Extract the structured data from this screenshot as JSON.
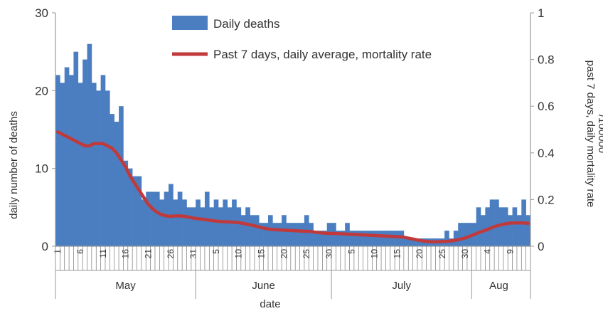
{
  "chart_data": {
    "type": "bar",
    "xlabel": "date",
    "ylabel_left": "daily number of deaths",
    "ylabel_right": [
      "past 7 days, daily mortality rate",
      "/100000"
    ],
    "ylim_left": [
      0,
      30
    ],
    "ylim_right": [
      0,
      1
    ],
    "yticks_left": [
      "0",
      "10",
      "20",
      "30"
    ],
    "yticks_right": [
      "0",
      "0.2",
      "0.4",
      "0.6",
      "0.8",
      "1"
    ],
    "grid": false,
    "legend_position": "top-center",
    "legend": {
      "bars": "Daily deaths",
      "line": "Past 7 days, daily average, mortality rate"
    },
    "day_labels": [
      {
        "text": "1",
        "idx": 0
      },
      {
        "text": "6",
        "idx": 5
      },
      {
        "text": "11",
        "idx": 10
      },
      {
        "text": "16",
        "idx": 15
      },
      {
        "text": "21",
        "idx": 20
      },
      {
        "text": "26",
        "idx": 25
      },
      {
        "text": "31",
        "idx": 30
      },
      {
        "text": "5",
        "idx": 35
      },
      {
        "text": "10",
        "idx": 40
      },
      {
        "text": "15",
        "idx": 45
      },
      {
        "text": "20",
        "idx": 50
      },
      {
        "text": "25",
        "idx": 55
      },
      {
        "text": "30",
        "idx": 60
      },
      {
        "text": "5",
        "idx": 65
      },
      {
        "text": "10",
        "idx": 70
      },
      {
        "text": "15",
        "idx": 75
      },
      {
        "text": "20",
        "idx": 80
      },
      {
        "text": "25",
        "idx": 85
      },
      {
        "text": "30",
        "idx": 90
      },
      {
        "text": "4",
        "idx": 95
      },
      {
        "text": "9",
        "idx": 100
      }
    ],
    "months": [
      {
        "label": "May",
        "start_idx": 0,
        "end_idx": 31
      },
      {
        "label": "June",
        "start_idx": 31,
        "end_idx": 61
      },
      {
        "label": "July",
        "start_idx": 61,
        "end_idx": 92
      },
      {
        "label": "Aug",
        "start_idx": 92,
        "end_idx": 104
      }
    ],
    "series": [
      {
        "name": "Daily deaths",
        "type": "bar",
        "axis": "left",
        "color": "#4a7ec0",
        "start_date": "May 1",
        "values": [
          22,
          21,
          23,
          22,
          25,
          21,
          24,
          26,
          21,
          20,
          22,
          20,
          17,
          16,
          18,
          11,
          10,
          9,
          9,
          6,
          7,
          7,
          7,
          6,
          7,
          8,
          6,
          7,
          6,
          5,
          5,
          6,
          5,
          7,
          5,
          6,
          5,
          6,
          5,
          6,
          5,
          4,
          5,
          4,
          4,
          3,
          3,
          4,
          3,
          3,
          4,
          3,
          3,
          3,
          3,
          4,
          3,
          2,
          2,
          2,
          3,
          3,
          2,
          2,
          3,
          2,
          2,
          2,
          2,
          2,
          2,
          2,
          2,
          2,
          2,
          2,
          2,
          1,
          1,
          1,
          1,
          1,
          1,
          1,
          1,
          1,
          2,
          1,
          2,
          3,
          3,
          3,
          3,
          5,
          4,
          5,
          6,
          6,
          5,
          5,
          4,
          5,
          4,
          6,
          4
        ]
      },
      {
        "name": "Past 7 days, daily average, mortality rate",
        "type": "line",
        "axis": "right",
        "color": "#c0393b",
        "values": [
          0.49,
          0.48,
          0.47,
          0.46,
          0.45,
          0.44,
          0.43,
          0.43,
          0.44,
          0.44,
          0.44,
          0.43,
          0.42,
          0.4,
          0.37,
          0.34,
          0.3,
          0.27,
          0.24,
          0.21,
          0.18,
          0.16,
          0.145,
          0.135,
          0.13,
          0.128,
          0.13,
          0.13,
          0.128,
          0.125,
          0.12,
          0.118,
          0.116,
          0.113,
          0.11,
          0.108,
          0.106,
          0.105,
          0.104,
          0.103,
          0.101,
          0.098,
          0.094,
          0.09,
          0.085,
          0.08,
          0.076,
          0.073,
          0.071,
          0.07,
          0.069,
          0.068,
          0.067,
          0.066,
          0.065,
          0.064,
          0.063,
          0.06,
          0.058,
          0.056,
          0.055,
          0.055,
          0.054,
          0.053,
          0.052,
          0.051,
          0.05,
          0.049,
          0.048,
          0.047,
          0.046,
          0.045,
          0.044,
          0.043,
          0.042,
          0.041,
          0.04,
          0.037,
          0.033,
          0.029,
          0.025,
          0.022,
          0.02,
          0.019,
          0.019,
          0.02,
          0.021,
          0.023,
          0.026,
          0.03,
          0.035,
          0.042,
          0.05,
          0.058,
          0.065,
          0.072,
          0.08,
          0.087,
          0.092,
          0.096,
          0.099,
          0.1,
          0.1,
          0.1,
          0.098
        ]
      }
    ]
  }
}
